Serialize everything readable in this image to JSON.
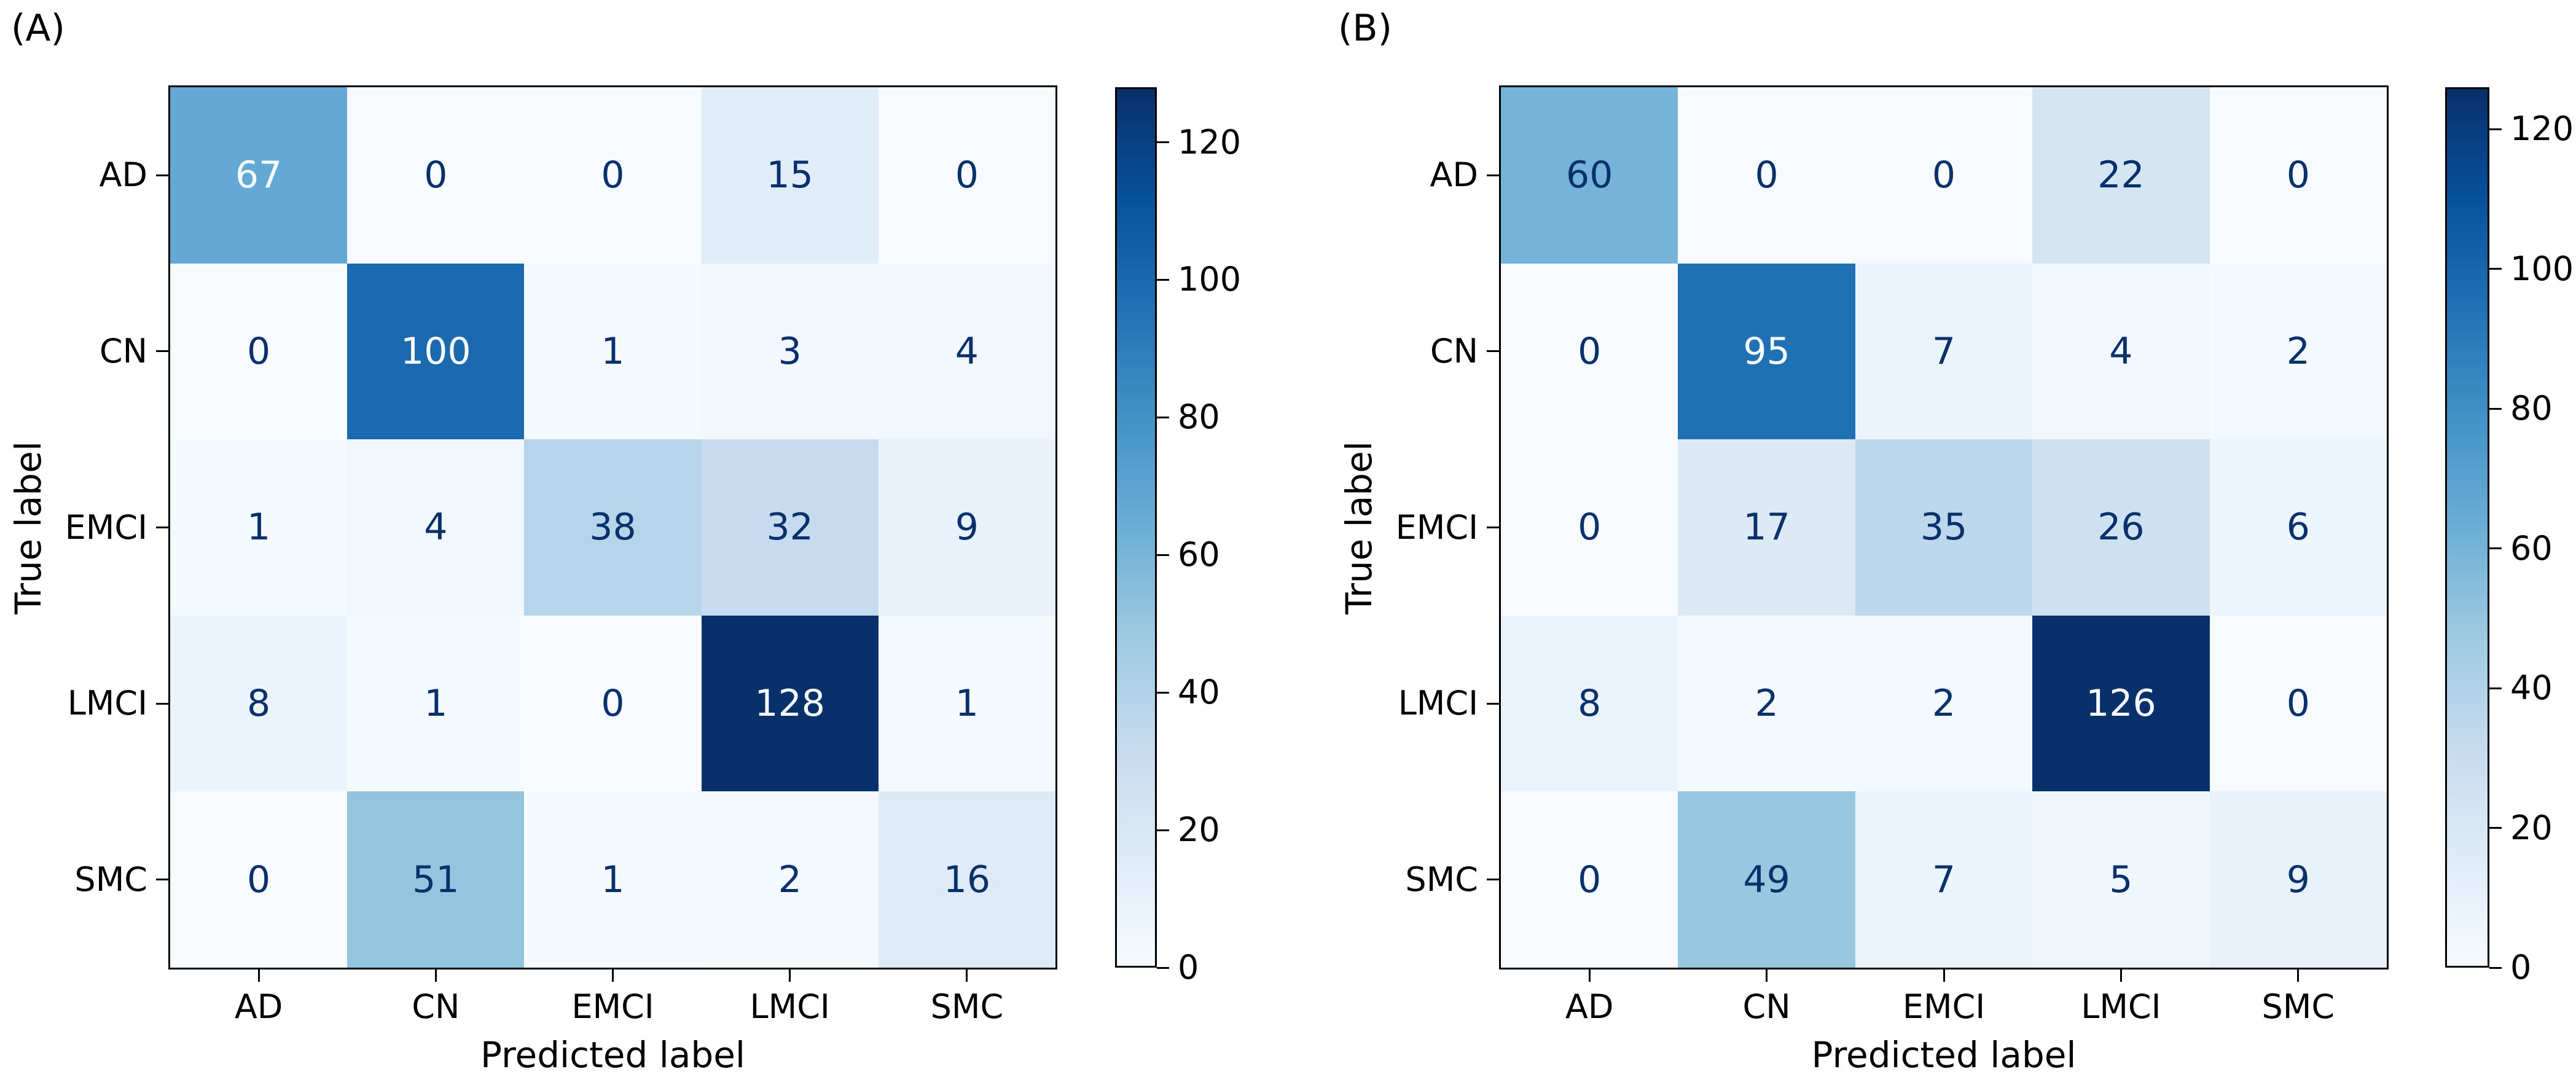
{
  "figure": {
    "background": "#ffffff",
    "colors": {
      "cmap_low": "#f7fbff",
      "cmap_high": "#08306b",
      "cell_text_dark": "#08306b",
      "cell_text_light": "#f7fbff",
      "axis_text": "#000000"
    }
  },
  "chart_data": [
    {
      "type": "heatmap",
      "title": "(A)",
      "xlabel": "Predicted label",
      "ylabel": "True label",
      "x_categories": [
        "AD",
        "CN",
        "EMCI",
        "LMCI",
        "SMC"
      ],
      "y_categories": [
        "AD",
        "CN",
        "EMCI",
        "LMCI",
        "SMC"
      ],
      "values": [
        [
          67,
          0,
          0,
          15,
          0
        ],
        [
          0,
          100,
          1,
          3,
          4
        ],
        [
          1,
          4,
          38,
          32,
          9
        ],
        [
          8,
          1,
          0,
          128,
          1
        ],
        [
          0,
          51,
          1,
          2,
          16
        ]
      ],
      "colormap": "Blues",
      "vmin": 0,
      "vmax": 128,
      "colorbar_ticks": [
        0,
        20,
        40,
        60,
        80,
        100,
        120
      ],
      "legend_position": "right-colorbar",
      "grid": false
    },
    {
      "type": "heatmap",
      "title": "(B)",
      "xlabel": "Predicted label",
      "ylabel": "True label",
      "x_categories": [
        "AD",
        "CN",
        "EMCI",
        "LMCI",
        "SMC"
      ],
      "y_categories": [
        "AD",
        "CN",
        "EMCI",
        "LMCI",
        "SMC"
      ],
      "values": [
        [
          60,
          0,
          0,
          22,
          0
        ],
        [
          0,
          95,
          7,
          4,
          2
        ],
        [
          0,
          17,
          35,
          26,
          6
        ],
        [
          8,
          2,
          2,
          126,
          0
        ],
        [
          0,
          49,
          7,
          5,
          9
        ]
      ],
      "colormap": "Blues",
      "vmin": 0,
      "vmax": 126,
      "colorbar_ticks": [
        0,
        20,
        40,
        60,
        80,
        100,
        120
      ],
      "legend_position": "right-colorbar",
      "grid": false
    }
  ]
}
